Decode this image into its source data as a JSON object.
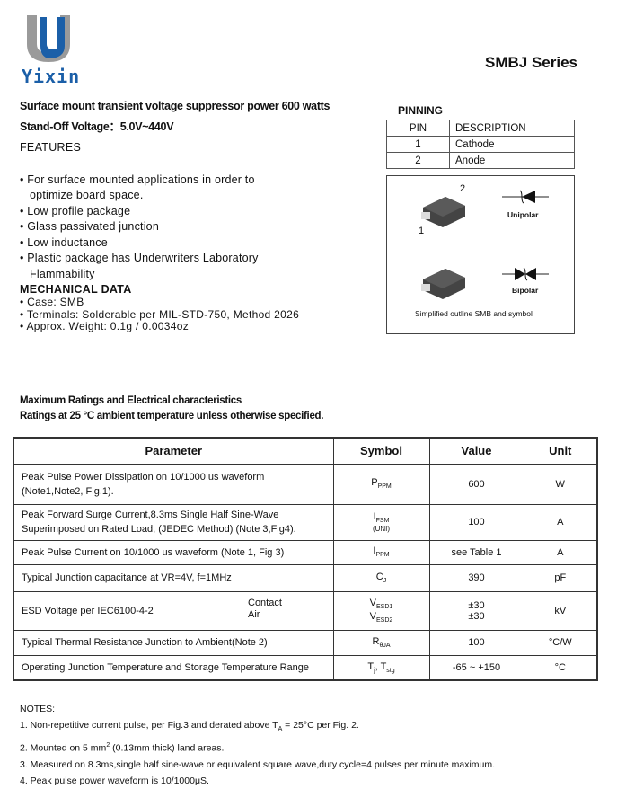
{
  "logo": {
    "text": "Yixin",
    "colors": {
      "gray": "#9a9a9a",
      "blue": "#1b5fa8"
    }
  },
  "series": "SMBJ Series",
  "headline": [
    "Surface mount transient  voltage suppressor power 600 watts",
    "Stand-Off Voltage：5.0V~440V"
  ],
  "features": {
    "title": "FEATURES",
    "items": [
      "• For surface mounted applications in order to",
      "   optimize board space.",
      "• Low profile package",
      "• Glass passivated junction",
      "• Low inductance",
      "• Plastic package has Underwriters Laboratory",
      "   Flammability"
    ]
  },
  "mechanical": {
    "title": "MECHANICAL DATA",
    "items": [
      "• Case: SMB",
      "• Terminals: Solderable per MIL-STD-750, Method 2026",
      "• Approx. Weight: 0.1g / 0.0034oz"
    ]
  },
  "pinning": {
    "title": "PINNING",
    "headers": [
      "PIN",
      "DESCRIPTION"
    ],
    "rows": [
      [
        "1",
        "Cathode"
      ],
      [
        "2",
        "Anode"
      ]
    ]
  },
  "outline": {
    "pin2": "2",
    "pin1": "1",
    "unipolar": "Unipolar",
    "bipolar": "Bipolar",
    "caption": "Simplified outline SMB and symbol"
  },
  "ratings": {
    "title": "Maximum Ratings and Electrical characteristics",
    "subtitle": "Ratings at 25 °C ambient temperature unless otherwise specified.",
    "headers": [
      "Parameter",
      "Symbol",
      "Value",
      "Unit"
    ],
    "rows": [
      {
        "param": "Peak Pulse Power Dissipation on 10/1000 us waveform",
        "param2": "(Note1,Note2, Fig.1).",
        "sym": "P",
        "sub": "PPM",
        "value": "600",
        "unit": "W"
      },
      {
        "param": "Peak Forward Surge Current,8.3ms Single Half Sine-Wave",
        "param2": "Superimposed on Rated Load, (JEDEC Method) (Note 3,Fig4).",
        "sym": "I",
        "sub": "FSM",
        "sym2": "(UNI)",
        "value": "100",
        "unit": "A"
      },
      {
        "param": "Peak Pulse Current on 10/1000 us waveform (Note 1, Fig 3)",
        "sym": "I",
        "sub": "PPM",
        "value": "see Table 1",
        "unit": "A"
      },
      {
        "param": "Typical Junction capacitance at VR=4V, f=1MHz",
        "sym": "C",
        "sub": "J",
        "value": "390",
        "unit": "pF"
      },
      {
        "param": "ESD Voltage per IEC6100-4-2",
        "contact": "Contact",
        "air": "Air",
        "sym": "V",
        "sub": "ESD1",
        "symb": "V",
        "subb": "ESD2",
        "value": "±30",
        "value2": "±30",
        "unit": "kV"
      },
      {
        "param": "Typical Thermal Resistance Junction to Ambient(Note 2)",
        "sym": "R",
        "sub": "θJA",
        "value": "100",
        "unit": "°C/W"
      },
      {
        "param": "Operating Junction Temperature and Storage Temperature Range",
        "sym": "T",
        "sub": "j",
        "symc": ", T",
        "subc": "stg",
        "value": "-65 ~ +150",
        "unit": "°C"
      }
    ]
  },
  "notes": [
    "NOTES:",
    "1. Non-repetitive current pulse, per Fig.3 and derated above T",
    "A",
    " = 25°C  per Fig. 2.",
    "2. Mounted on 5 mm",
    "2",
    " (0.13mm  thick) land areas.",
    "3. Measured on 8.3ms,single half sine-wave or equivalent square wave,duty cycle=4 pulses per minute maximum.",
    "4. Peak pulse power waveform is 10/1000μS."
  ]
}
